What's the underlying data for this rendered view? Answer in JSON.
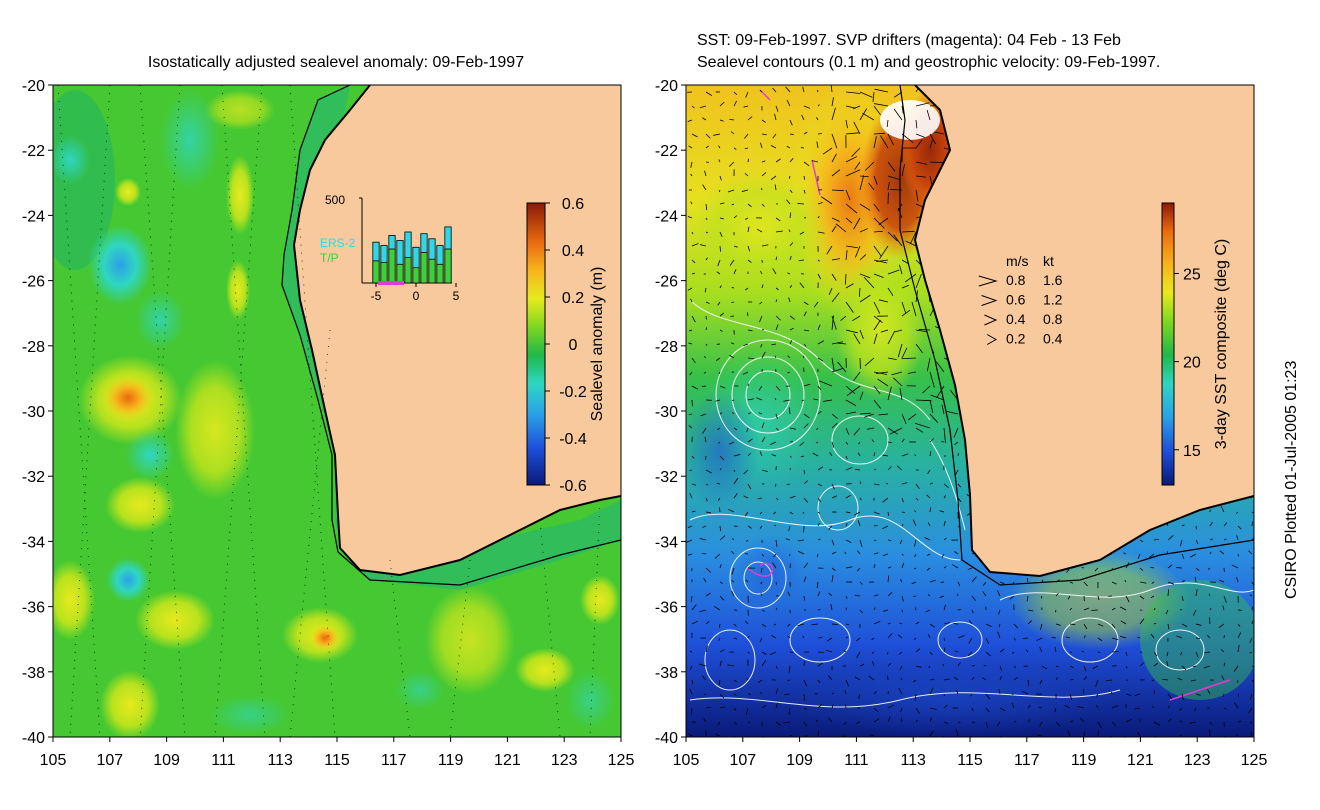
{
  "left_panel": {
    "title": "Isostatically adjusted sealevel anomaly: 09-Feb-1997",
    "colorbar": {
      "label": "Sealevel anomaly (m)",
      "ticks": [
        "0.6",
        "0.4",
        "0.2",
        "0",
        "-0.2",
        "-0.4",
        "-0.6"
      ],
      "tick_values": [
        0.6,
        0.4,
        0.2,
        0,
        -0.2,
        -0.4,
        -0.6
      ],
      "range": [
        -0.6,
        0.6
      ]
    },
    "inset": {
      "y_tick": "500",
      "x_ticks": [
        "-5",
        "0",
        "5"
      ],
      "x_tick_values": [
        -5,
        0,
        5
      ],
      "x_range": [
        -6,
        5
      ],
      "y_max": 500,
      "legend": [
        "ERS-2",
        "T/P"
      ],
      "legend_colors": [
        "#2ed8e8",
        "#3ad23a"
      ],
      "bars": [
        {
          "day": -5,
          "ers2": 240,
          "tp": 130
        },
        {
          "day": -4,
          "ers2": 220,
          "tp": 120
        },
        {
          "day": -3,
          "ers2": 280,
          "tp": 200
        },
        {
          "day": -2,
          "ers2": 250,
          "tp": 110
        },
        {
          "day": -1,
          "ers2": 300,
          "tp": 150
        },
        {
          "day": 0,
          "ers2": 210,
          "tp": 90
        },
        {
          "day": 1,
          "ers2": 290,
          "tp": 180
        },
        {
          "day": 2,
          "ers2": 260,
          "tp": 140
        },
        {
          "day": 3,
          "ers2": 220,
          "tp": 110
        },
        {
          "day": 4,
          "ers2": 330,
          "tp": 200
        }
      ]
    }
  },
  "right_panel": {
    "title_line1": "SST: 09-Feb-1997. SVP drifters (magenta): 04 Feb - 13 Feb",
    "title_line2": "Sealevel contours (0.1 m) and geostrophic velocity: 09-Feb-1997.",
    "colorbar": {
      "label": "3-day SST composite (deg C)",
      "ticks": [
        "25",
        "20",
        "15"
      ],
      "tick_values": [
        25,
        20,
        15
      ],
      "range": [
        13,
        29
      ]
    },
    "velocity_legend": {
      "header_ms": "m/s",
      "header_kt": "kt",
      "rows": [
        {
          "ms": "0.8",
          "kt": "1.6",
          "speed": 0.8
        },
        {
          "ms": "0.6",
          "kt": "1.2",
          "speed": 0.6
        },
        {
          "ms": "0.4",
          "kt": "0.8",
          "speed": 0.4
        },
        {
          "ms": "0.2",
          "kt": "0.4",
          "speed": 0.2
        }
      ]
    }
  },
  "axes": {
    "lat_labels": [
      "-20",
      "-22",
      "-24",
      "-26",
      "-28",
      "-30",
      "-32",
      "-34",
      "-36",
      "-38",
      "-40"
    ],
    "lat_values": [
      -20,
      -22,
      -24,
      -26,
      -28,
      -30,
      -32,
      -34,
      -36,
      -38,
      -40
    ],
    "lon_labels": [
      "105",
      "107",
      "109",
      "111",
      "113",
      "115",
      "117",
      "119",
      "121",
      "123",
      "125"
    ],
    "lon_values": [
      105,
      107,
      109,
      111,
      113,
      115,
      117,
      119,
      121,
      123,
      125
    ],
    "lon_range": [
      105,
      125
    ],
    "lat_range": [
      -40,
      -20
    ]
  },
  "credit": "CSIRO Plotted 01-Jul-2005 01:23",
  "colors": {
    "land": "#f8c99c",
    "coast": "#000000",
    "contour": "#ffffff",
    "drifter": "#e23ad6"
  }
}
